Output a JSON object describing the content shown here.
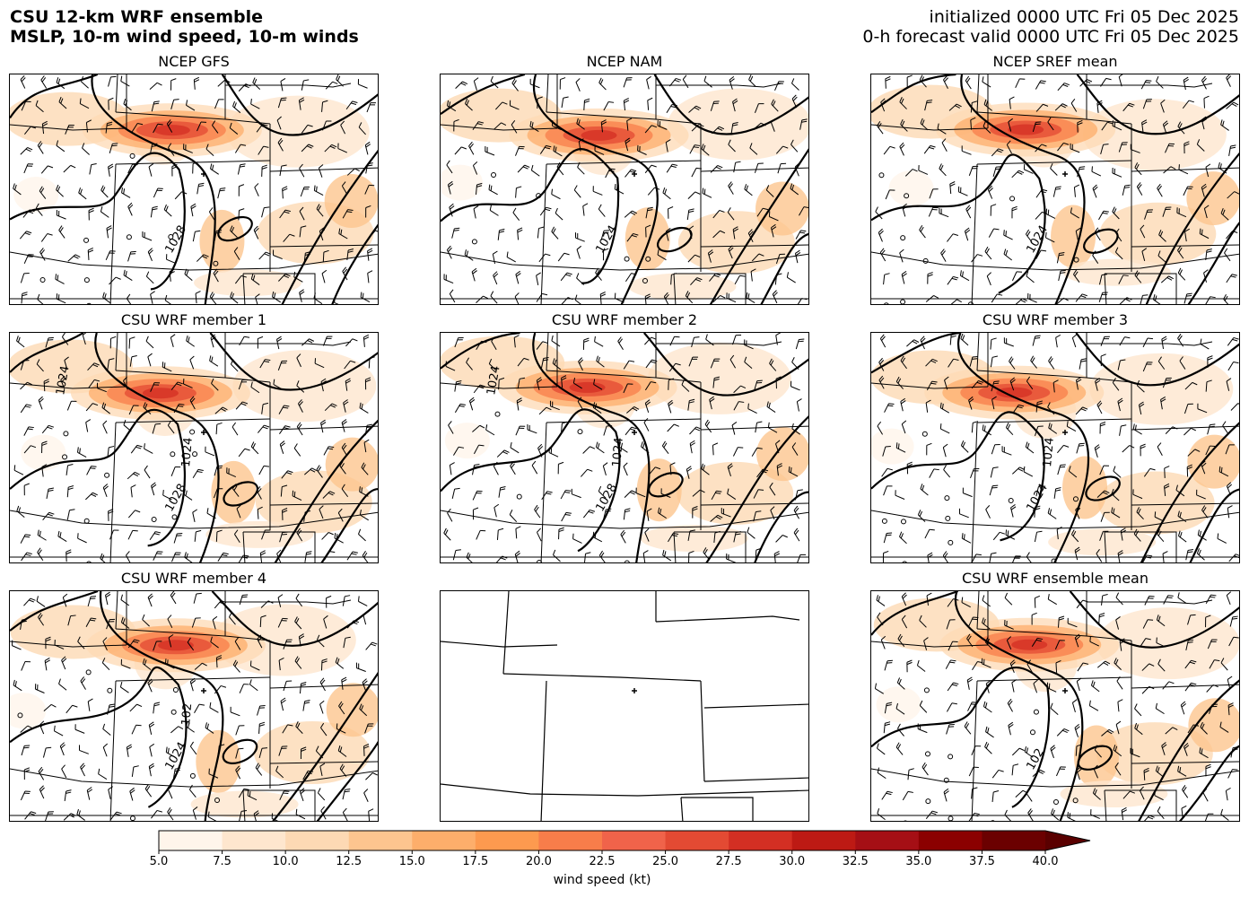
{
  "header": {
    "title_line1": "CSU 12-km WRF ensemble",
    "title_line2": "MSLP, 10-m wind speed, 10-m winds",
    "init_line": "initialized 0000 UTC Fri 05 Dec 2025",
    "valid_line": "0-h forecast valid 0000 UTC Fri 05 Dec 2025"
  },
  "panels": [
    {
      "title": "NCEP GFS",
      "contours": [
        "1028"
      ],
      "has_data": true
    },
    {
      "title": "NCEP NAM",
      "contours": [
        "1024"
      ],
      "has_data": true
    },
    {
      "title": "NCEP SREF mean",
      "contours": [
        "1024"
      ],
      "has_data": true
    },
    {
      "title": "CSU WRF member 1",
      "contours": [
        "1028",
        "1024",
        "1024"
      ],
      "has_data": true
    },
    {
      "title": "CSU WRF member 2",
      "contours": [
        "1028",
        "1024",
        "1024"
      ],
      "has_data": true
    },
    {
      "title": "CSU WRF member 3",
      "contours": [
        "1024",
        "1024"
      ],
      "has_data": true
    },
    {
      "title": "CSU WRF member 4",
      "contours": [
        "1024",
        "102"
      ],
      "has_data": true
    },
    {
      "title": "",
      "contours": [],
      "has_data": false
    },
    {
      "title": "CSU WRF ensemble mean",
      "contours": [
        "102"
      ],
      "has_data": true
    }
  ],
  "colorbar": {
    "label": "wind speed (kt)",
    "ticks": [
      "5.0",
      "7.5",
      "10.0",
      "12.5",
      "15.0",
      "17.5",
      "20.0",
      "22.5",
      "25.0",
      "27.5",
      "30.0",
      "32.5",
      "35.0",
      "37.5",
      "40.0"
    ],
    "colors": [
      "#fff5eb",
      "#fee6ce",
      "#fdd9b4",
      "#fdc58f",
      "#fdae6b",
      "#fd9a4f",
      "#f87d4a",
      "#f0634a",
      "#e34a33",
      "#d32f23",
      "#bd1a14",
      "#a50f15",
      "#8b0000",
      "#6b0000"
    ],
    "extend_color": "#5a0000"
  }
}
